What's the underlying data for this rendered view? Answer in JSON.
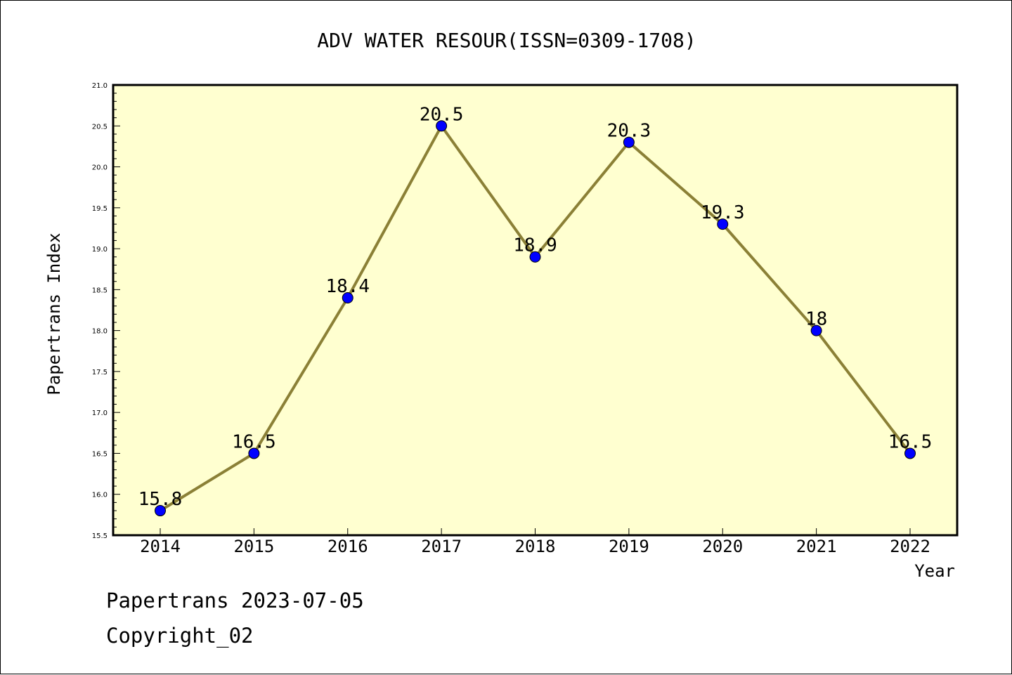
{
  "chart_data": {
    "type": "line",
    "title": "ADV WATER RESOUR(ISSN=0309-1708)",
    "xlabel": "Year",
    "ylabel": "Papertrans Index",
    "categories": [
      "2014",
      "2015",
      "2016",
      "2017",
      "2018",
      "2019",
      "2020",
      "2021",
      "2022"
    ],
    "series": [
      {
        "values": [
          15.8,
          16.5,
          18.4,
          20.5,
          18.9,
          20.3,
          19.3,
          18,
          16.5
        ],
        "labels": [
          "15.8",
          "16.5",
          "18.4",
          "20.5",
          "18.9",
          "20.3",
          "19.3",
          "18",
          "16.5"
        ]
      }
    ],
    "ylim": [
      15.5,
      21.0
    ],
    "yticks": [
      "15.5",
      "16.0",
      "16.5",
      "17.0",
      "17.5",
      "18.0",
      "18.5",
      "19.0",
      "19.5",
      "20.0",
      "20.5",
      "21.0"
    ],
    "grid": false,
    "legend": "none",
    "colors": {
      "plot_background": "#ffffd0",
      "line": "#8b8036",
      "marker": "#0000ff",
      "axis": "#000000"
    }
  },
  "footer": {
    "line1": "Papertrans 2023-07-05",
    "line2": "Copyright_02"
  }
}
